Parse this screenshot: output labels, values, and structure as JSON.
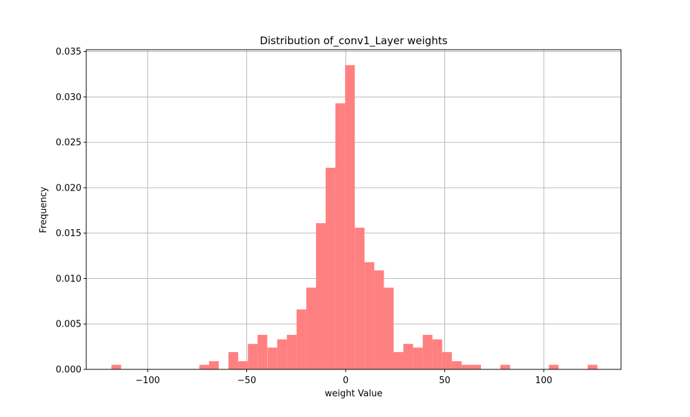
{
  "chart_data": {
    "type": "bar",
    "title": "Distribution of_conv1_Layer weights",
    "xlabel": "weight Value",
    "ylabel": "Frequency",
    "xlim": [
      -131,
      139
    ],
    "ylim": [
      0,
      0.0352
    ],
    "grid": true,
    "bar_color": "#ff8080",
    "grid_color": "#b0b0b0",
    "bin_width": 4.9,
    "x_ticks": [
      {
        "value": -100,
        "label": "−100"
      },
      {
        "value": -50,
        "label": "−50"
      },
      {
        "value": 0,
        "label": "0"
      },
      {
        "value": 50,
        "label": "50"
      },
      {
        "value": 100,
        "label": "100"
      }
    ],
    "y_ticks": [
      {
        "value": 0,
        "label": "0.000"
      },
      {
        "value": 0.005,
        "label": "0.005"
      },
      {
        "value": 0.01,
        "label": "0.010"
      },
      {
        "value": 0.015,
        "label": "0.015"
      },
      {
        "value": 0.02,
        "label": "0.020"
      },
      {
        "value": 0.025,
        "label": "0.025"
      },
      {
        "value": 0.03,
        "label": "0.030"
      },
      {
        "value": 0.035,
        "label": "0.035"
      }
    ],
    "bins": [
      {
        "x": -118.3,
        "value": 0.0005
      },
      {
        "x": -73.9,
        "value": 0.0005
      },
      {
        "x": -69.0,
        "value": 0.0009
      },
      {
        "x": -59.2,
        "value": 0.0019
      },
      {
        "x": -54.3,
        "value": 0.0009
      },
      {
        "x": -49.4,
        "value": 0.0028
      },
      {
        "x": -44.5,
        "value": 0.0038
      },
      {
        "x": -39.5,
        "value": 0.0024
      },
      {
        "x": -34.6,
        "value": 0.0033
      },
      {
        "x": -29.7,
        "value": 0.0038
      },
      {
        "x": -24.8,
        "value": 0.0066
      },
      {
        "x": -19.9,
        "value": 0.009
      },
      {
        "x": -15.0,
        "value": 0.0161
      },
      {
        "x": -10.1,
        "value": 0.0222
      },
      {
        "x": -5.2,
        "value": 0.0293
      },
      {
        "x": -0.3,
        "value": 0.0335
      },
      {
        "x": 4.6,
        "value": 0.0156
      },
      {
        "x": 9.5,
        "value": 0.0118
      },
      {
        "x": 14.4,
        "value": 0.0109
      },
      {
        "x": 19.3,
        "value": 0.009
      },
      {
        "x": 24.2,
        "value": 0.0019
      },
      {
        "x": 29.1,
        "value": 0.0028
      },
      {
        "x": 34.0,
        "value": 0.0024
      },
      {
        "x": 38.9,
        "value": 0.0038
      },
      {
        "x": 43.8,
        "value": 0.0033
      },
      {
        "x": 48.7,
        "value": 0.0019
      },
      {
        "x": 53.6,
        "value": 0.0009
      },
      {
        "x": 58.5,
        "value": 0.0005
      },
      {
        "x": 63.4,
        "value": 0.0005
      },
      {
        "x": 78.1,
        "value": 0.0005
      },
      {
        "x": 102.6,
        "value": 0.0005
      },
      {
        "x": 122.2,
        "value": 0.0005
      }
    ]
  }
}
